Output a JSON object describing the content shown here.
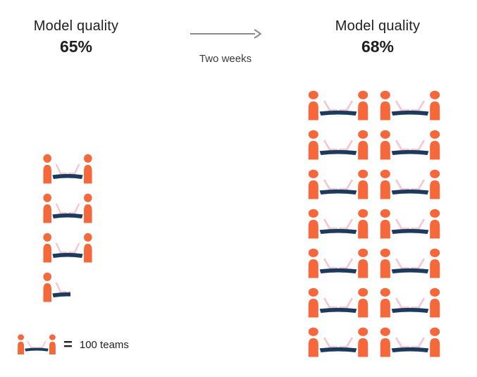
{
  "left_panel": {
    "title": "Model quality",
    "value": "65%"
  },
  "right_panel": {
    "title": "Model quality",
    "value": "68%"
  },
  "transition": {
    "label": "Two weeks"
  },
  "legend": {
    "equals": "=",
    "label": "100 teams"
  },
  "colors": {
    "person": "#F4683B",
    "table": "#1C3A5E",
    "laptop": "#F7C6CE",
    "arrow": "#8C8C8C",
    "text": "#1F1F1F"
  },
  "chart_data": {
    "type": "pictograph",
    "title": "Model quality comparison",
    "unit_per_icon": 100,
    "unit": "teams",
    "legend_label": "100 teams",
    "annotation": "Two weeks",
    "legend_position": "bottom-left",
    "series": [
      {
        "name": "before",
        "title": "Model quality",
        "value_pct": "65%",
        "full_icons": 3,
        "partial_icons": 1,
        "icons_total": 3.5,
        "teams": 350
      },
      {
        "name": "after",
        "title": "Model quality",
        "value_pct": "68%",
        "full_icons": 14,
        "partial_icons": 0,
        "icons_total": 14,
        "teams": 1400
      }
    ],
    "right_grid_columns": 2
  }
}
